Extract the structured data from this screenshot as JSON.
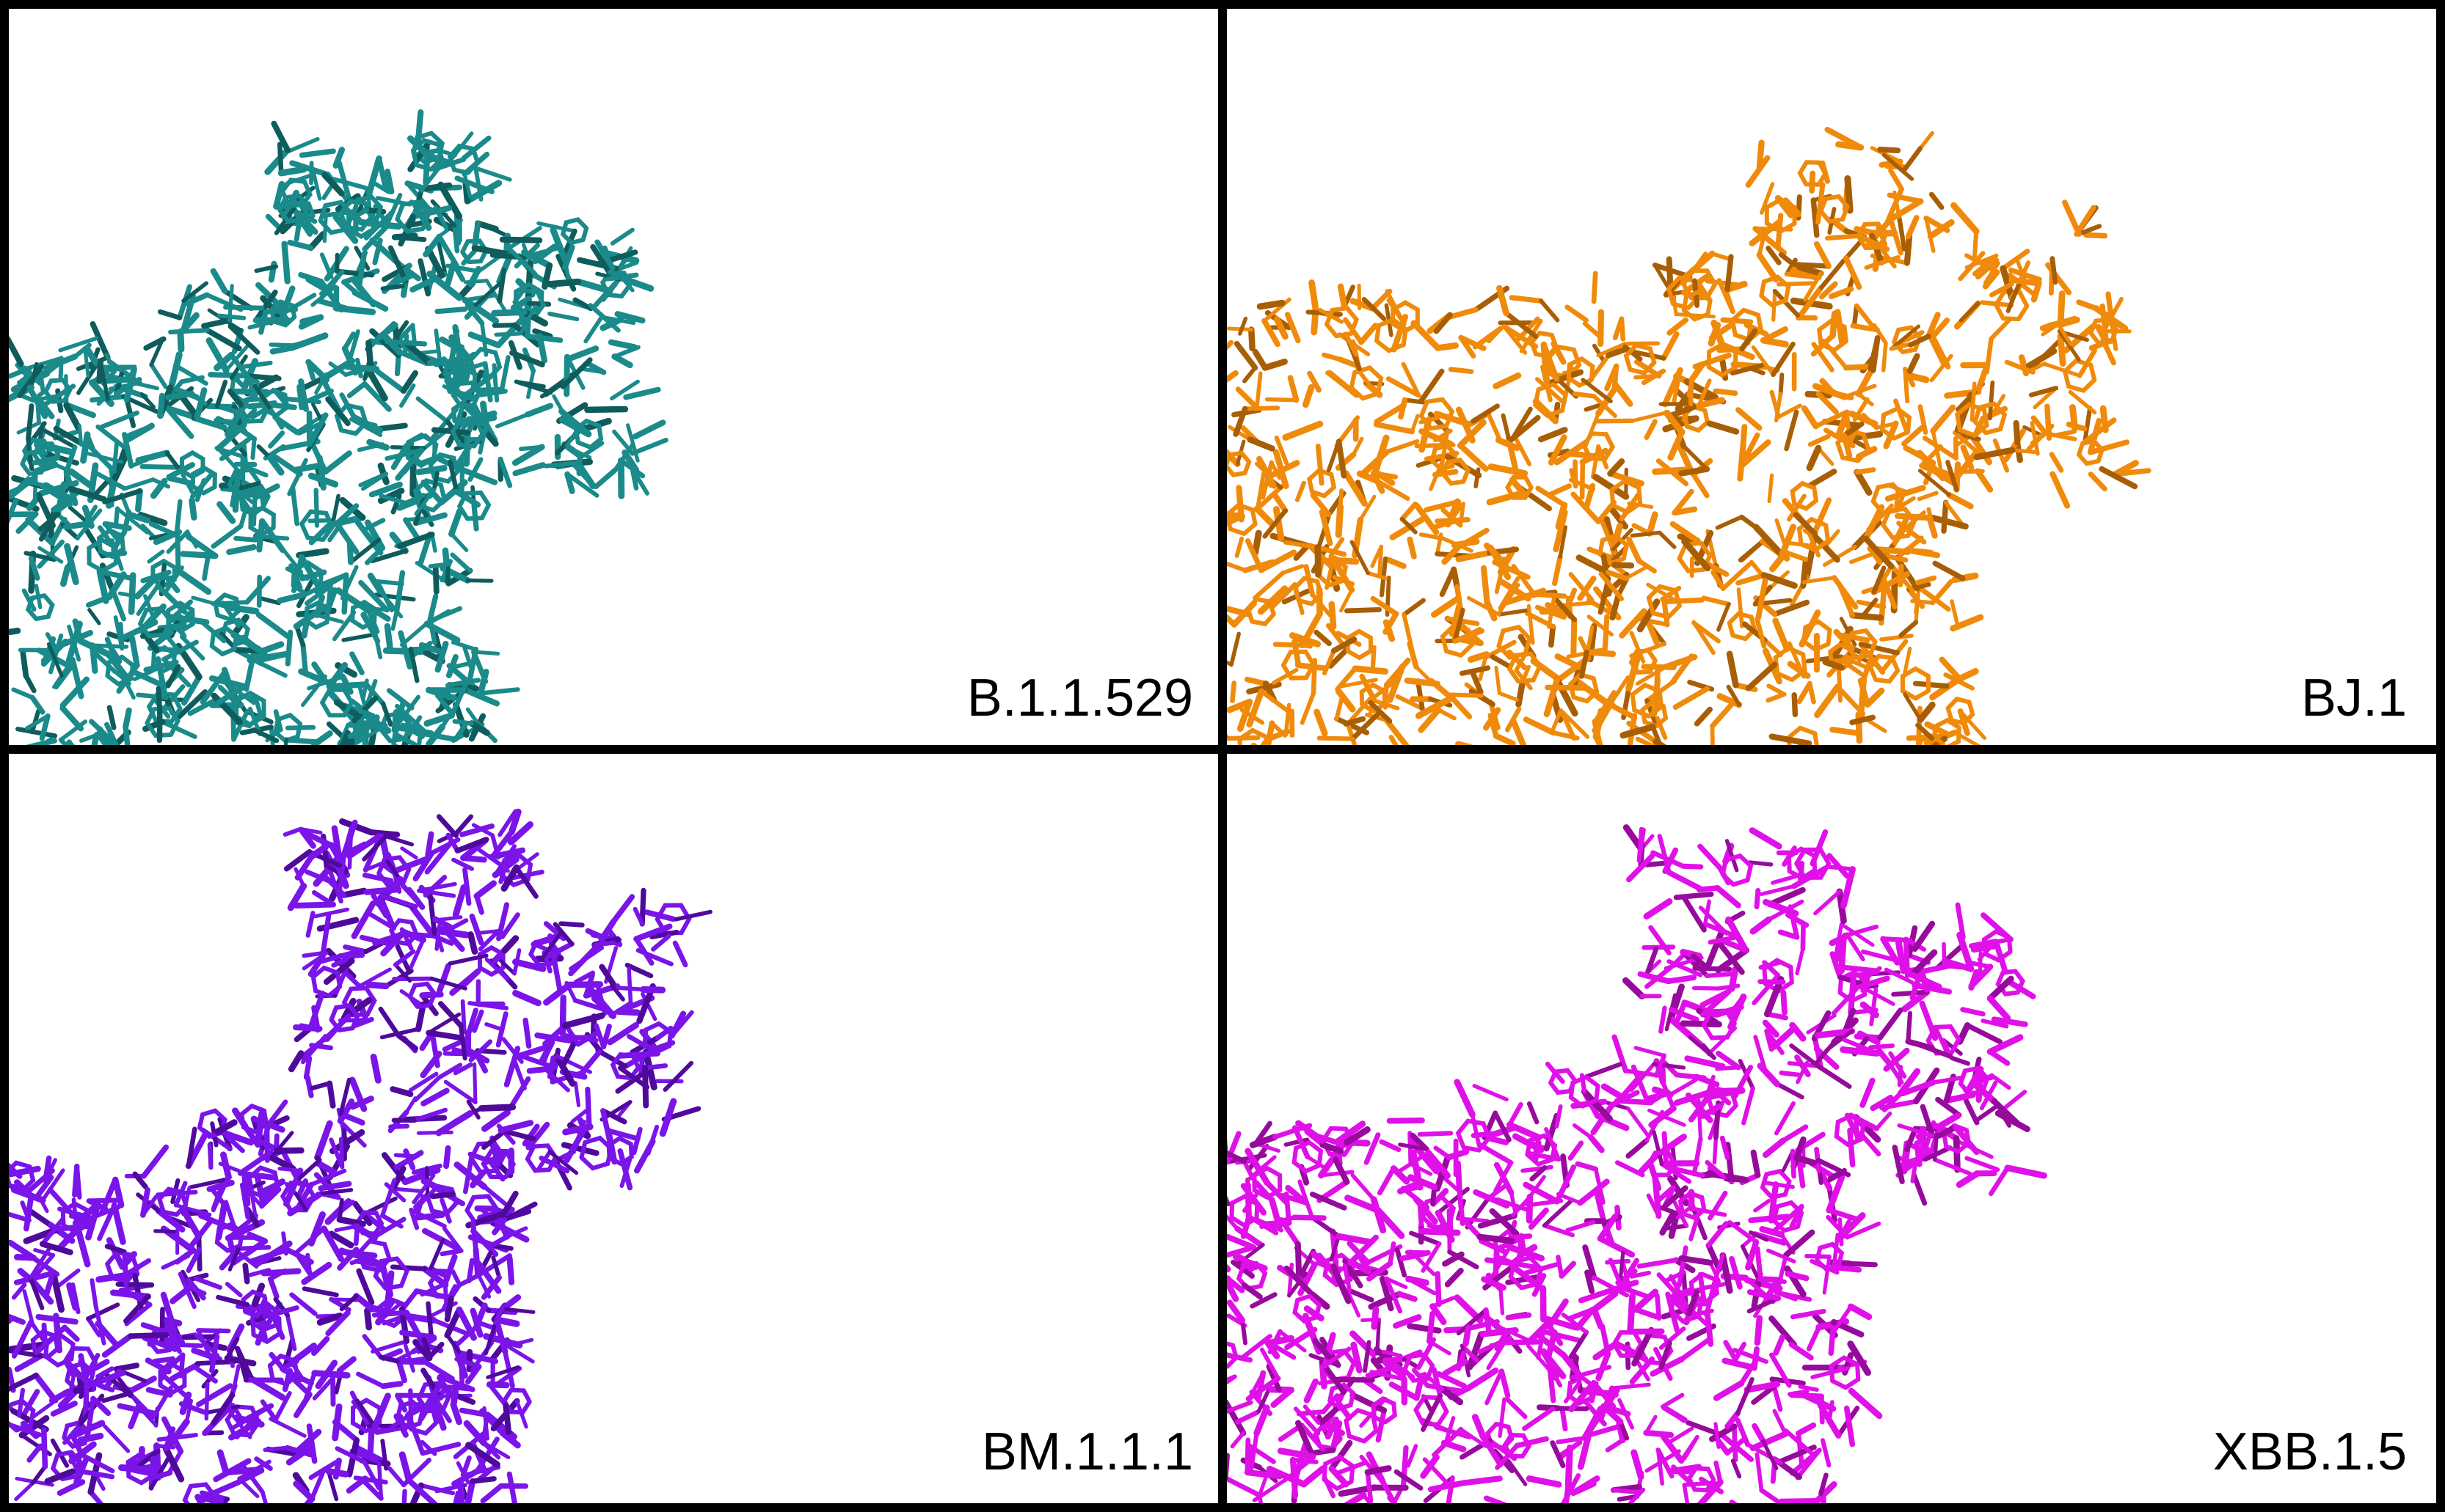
{
  "panels": [
    {
      "label": "B.1.1.529",
      "color": "#1a8a8a",
      "dark": "#0f5c5c"
    },
    {
      "label": "BJ.1",
      "color": "#f08a0a",
      "dark": "#a85e05"
    },
    {
      "label": "BM.1.1.1",
      "color": "#7a14e8",
      "dark": "#4f0a9c"
    },
    {
      "label": "XBB.1.5",
      "color": "#e010e8",
      "dark": "#960a9c"
    }
  ]
}
